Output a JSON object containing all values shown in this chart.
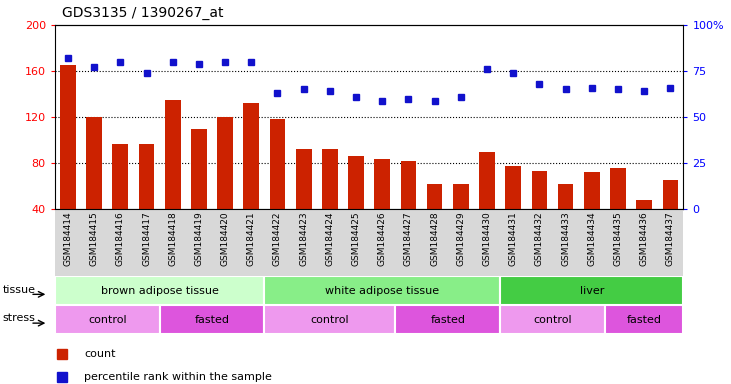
{
  "title": "GDS3135 / 1390267_at",
  "samples": [
    "GSM184414",
    "GSM184415",
    "GSM184416",
    "GSM184417",
    "GSM184418",
    "GSM184419",
    "GSM184420",
    "GSM184421",
    "GSM184422",
    "GSM184423",
    "GSM184424",
    "GSM184425",
    "GSM184426",
    "GSM184427",
    "GSM184428",
    "GSM184429",
    "GSM184430",
    "GSM184431",
    "GSM184432",
    "GSM184433",
    "GSM184434",
    "GSM184435",
    "GSM184436",
    "GSM184437"
  ],
  "counts": [
    165,
    120,
    97,
    97,
    135,
    110,
    120,
    132,
    118,
    92,
    92,
    86,
    84,
    82,
    62,
    62,
    90,
    78,
    73,
    62,
    72,
    76,
    48,
    65
  ],
  "percentiles": [
    82,
    77,
    80,
    74,
    80,
    79,
    80,
    80,
    63,
    65,
    64,
    61,
    59,
    60,
    59,
    61,
    76,
    74,
    68,
    65,
    66,
    65,
    64,
    66
  ],
  "bar_color": "#cc2200",
  "dot_color": "#1111cc",
  "ylim_left": [
    40,
    200
  ],
  "ylim_right": [
    0,
    100
  ],
  "yticks_left": [
    40,
    80,
    120,
    160,
    200
  ],
  "yticks_right": [
    0,
    25,
    50,
    75,
    100
  ],
  "tissue_groups": [
    {
      "label": "brown adipose tissue",
      "start": 0,
      "end": 8,
      "color": "#ccffcc"
    },
    {
      "label": "white adipose tissue",
      "start": 8,
      "end": 17,
      "color": "#88ee88"
    },
    {
      "label": "liver",
      "start": 17,
      "end": 24,
      "color": "#44cc44"
    }
  ],
  "stress_groups": [
    {
      "label": "control",
      "start": 0,
      "end": 4,
      "color": "#ee99ee"
    },
    {
      "label": "fasted",
      "start": 4,
      "end": 8,
      "color": "#dd55dd"
    },
    {
      "label": "control",
      "start": 8,
      "end": 13,
      "color": "#ee99ee"
    },
    {
      "label": "fasted",
      "start": 13,
      "end": 17,
      "color": "#dd55dd"
    },
    {
      "label": "control",
      "start": 17,
      "end": 21,
      "color": "#ee99ee"
    },
    {
      "label": "fasted",
      "start": 21,
      "end": 24,
      "color": "#dd55dd"
    }
  ],
  "legend_count_label": "count",
  "legend_pct_label": "percentile rank within the sample",
  "tissue_row_label": "tissue",
  "stress_row_label": "stress",
  "sample_bg_color": "#d8d8d8"
}
